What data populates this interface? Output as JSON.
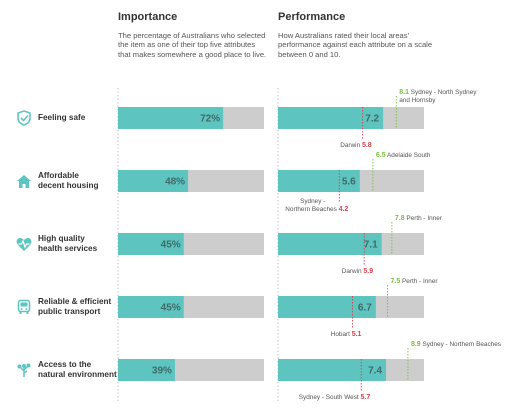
{
  "importance": {
    "title": "Importance",
    "description": "The percentage of Australians who selected the item as one of their top five attributes that makes somewhere a good place to live."
  },
  "performance": {
    "title": "Performance",
    "description": "How Australians rated their local areas' performance against each attribute on a scale between 0 and 10."
  },
  "colors": {
    "teal": "#5ec4bf",
    "grey": "#cdcdcd",
    "green": "#7bbe3f",
    "red": "#d9414e"
  },
  "chart_data": [
    {
      "type": "bar",
      "orientation": "horizontal",
      "title": "Importance",
      "ylim": [
        0,
        100
      ],
      "categories": [
        "Feeling safe",
        "Affordable decent housing",
        "High quality health services",
        "Reliable & efficient public transport",
        "Access to the natural environment"
      ],
      "values": [
        72,
        48,
        45,
        45,
        39
      ],
      "value_labels": [
        "72%",
        "48%",
        "45%",
        "45%",
        "39%"
      ]
    },
    {
      "type": "bar",
      "orientation": "horizontal",
      "title": "Performance",
      "ylim": [
        0,
        10
      ],
      "categories": [
        "Feeling safe",
        "Affordable decent housing",
        "High quality health services",
        "Reliable & efficient public transport",
        "Access to the natural environment"
      ],
      "values": [
        7.2,
        5.6,
        7.1,
        6.7,
        7.4
      ],
      "value_labels": [
        "7.2",
        "5.6",
        "7.1",
        "6.7",
        "7.4"
      ],
      "highest": [
        {
          "value": 8.1,
          "value_label": "8.1",
          "area": "Sydney - North Sydney and Hornsby"
        },
        {
          "value": 6.5,
          "value_label": "6.5",
          "area": "Adelaide South"
        },
        {
          "value": 7.8,
          "value_label": "7.8",
          "area": "Perth - Inner"
        },
        {
          "value": 7.5,
          "value_label": "7.5",
          "area": "Perth - Inner"
        },
        {
          "value": 8.9,
          "value_label": "8.9",
          "area": "Sydney - Northern Beaches"
        }
      ],
      "lowest": [
        {
          "value": 5.8,
          "value_label": "5.8",
          "area": "Darwin"
        },
        {
          "value": 4.2,
          "value_label": "4.2",
          "area": "Sydney - Northern Beaches"
        },
        {
          "value": 5.9,
          "value_label": "5.9",
          "area": "Darwin"
        },
        {
          "value": 5.1,
          "value_label": "5.1",
          "area": "Hobart"
        },
        {
          "value": 5.7,
          "value_label": "5.7",
          "area": "Sydney - South West"
        }
      ]
    }
  ],
  "rows": [
    {
      "label_lines": [
        "Feeling safe"
      ],
      "icon": "shield-check-icon"
    },
    {
      "label_lines": [
        "Affordable",
        "decent housing"
      ],
      "icon": "house-icon"
    },
    {
      "label_lines": [
        "High quality",
        "health services"
      ],
      "icon": "heart-pulse-icon"
    },
    {
      "label_lines": [
        "Reliable & efficient",
        "public transport"
      ],
      "icon": "bus-icon"
    },
    {
      "label_lines": [
        "Access to the",
        "natural environment"
      ],
      "icon": "tree-icon"
    }
  ]
}
